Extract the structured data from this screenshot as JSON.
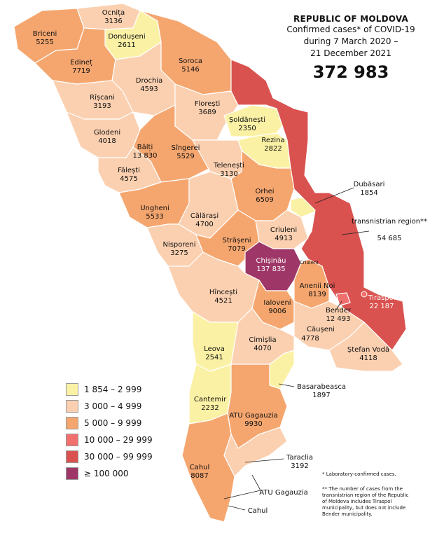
{
  "title": {
    "country": "REPUBLIC OF MOLDOVA",
    "line1": "Confirmed cases* of COVID-19",
    "line2": "during 7 March 2020 –",
    "line3": "21 December 2021",
    "total": "372 983"
  },
  "colors": {
    "c1": "#fbf1a5",
    "c2": "#fbd0b0",
    "c3": "#f5a66f",
    "c4": "#f1706e",
    "c5": "#d9524f",
    "c6": "#9e3767"
  },
  "legend": [
    {
      "label": "1 854 – 2 999",
      "color": "#fbf1a5"
    },
    {
      "label": "3 000 – 4 999",
      "color": "#fbd0b0"
    },
    {
      "label": "5 000 – 9 999",
      "color": "#f5a66f"
    },
    {
      "label": "10 000 – 29 999",
      "color": "#f1706e"
    },
    {
      "label": "30 000 – 99 999",
      "color": "#d9524f"
    },
    {
      "label": "≥ 100 000",
      "color": "#9e3767"
    }
  ],
  "regions": {
    "ocnita": {
      "name": "Ocnița",
      "value": "3136"
    },
    "briceni": {
      "name": "Briceni",
      "value": "5255"
    },
    "donduseni": {
      "name": "Dondușeni",
      "value": "2611"
    },
    "edinet": {
      "name": "Edineț",
      "value": "7719"
    },
    "soroca": {
      "name": "Soroca",
      "value": "5146"
    },
    "drochia": {
      "name": "Drochia",
      "value": "4593"
    },
    "riscani": {
      "name": "Rîșcani",
      "value": "3193"
    },
    "floresti": {
      "name": "Florești",
      "value": "3689"
    },
    "soldanesti": {
      "name": "Șoldănești",
      "value": "2350"
    },
    "glodeni": {
      "name": "Glodeni",
      "value": "4018"
    },
    "rezina": {
      "name": "Rezina",
      "value": "2822"
    },
    "balti": {
      "name": "Bălți",
      "value": "13 830"
    },
    "singerei": {
      "name": "Sîngerei",
      "value": "5529"
    },
    "falesti": {
      "name": "Fălești",
      "value": "4575"
    },
    "telenesti": {
      "name": "Telenești",
      "value": "3130"
    },
    "dubasari": {
      "name": "Dubăsari",
      "value": "1854"
    },
    "orhei": {
      "name": "Orhei",
      "value": "6509"
    },
    "ungheni": {
      "name": "Ungheni",
      "value": "5533"
    },
    "transnistria": {
      "name": "transnistrian region**",
      "value": "54 685"
    },
    "calarasi": {
      "name": "Călărași",
      "value": "4700"
    },
    "criuleni": {
      "name": "Criuleni",
      "value": "4913"
    },
    "nisporeni": {
      "name": "Nisporeni",
      "value": "3275"
    },
    "straseni": {
      "name": "Strășeni",
      "value": "7079"
    },
    "chisinau": {
      "name": "Chișinău",
      "value": "137 835"
    },
    "criuleni_small": {
      "name": "Criuleni"
    },
    "hincesti": {
      "name": "Hîncești",
      "value": "4521"
    },
    "anenii_noi": {
      "name": "Anenii Noi",
      "value": "8139"
    },
    "tiraspol": {
      "name": "Tiraspol",
      "value": "22 187"
    },
    "ialoveni": {
      "name": "Ialoveni",
      "value": "9006"
    },
    "bender": {
      "name": "Bender",
      "value": "12 493"
    },
    "causeni": {
      "name": "Căușeni",
      "value": "4778"
    },
    "leova": {
      "name": "Leova",
      "value": "2541"
    },
    "cimislia": {
      "name": "Cimișlia",
      "value": "4070"
    },
    "stefan_voda": {
      "name": "Ștefan Vodă",
      "value": "4118"
    },
    "basarabeasca": {
      "name": "Basarabeasca",
      "value": "1897"
    },
    "cantemir": {
      "name": "Cantemir",
      "value": "2232"
    },
    "gagauzia": {
      "name": "ATU Gagauzia",
      "value": "9930"
    },
    "cahul": {
      "name": "Cahul",
      "value": "8087"
    },
    "taraclia": {
      "name": "Taraclia",
      "value": "3192"
    },
    "gagauzia_small": {
      "name": "ATU Gagauzia"
    },
    "cahul_small": {
      "name": "Cahul"
    }
  },
  "footnotes": {
    "note1": "* Laboratory-confirmed cases.",
    "note2a": "** The number of cases from the",
    "note2b": "transnistrian region of the Republic",
    "note2c": "of Moldova includes Tiraspol",
    "note2d": "municipality, but does not include",
    "note2e": "Bender municipality."
  }
}
